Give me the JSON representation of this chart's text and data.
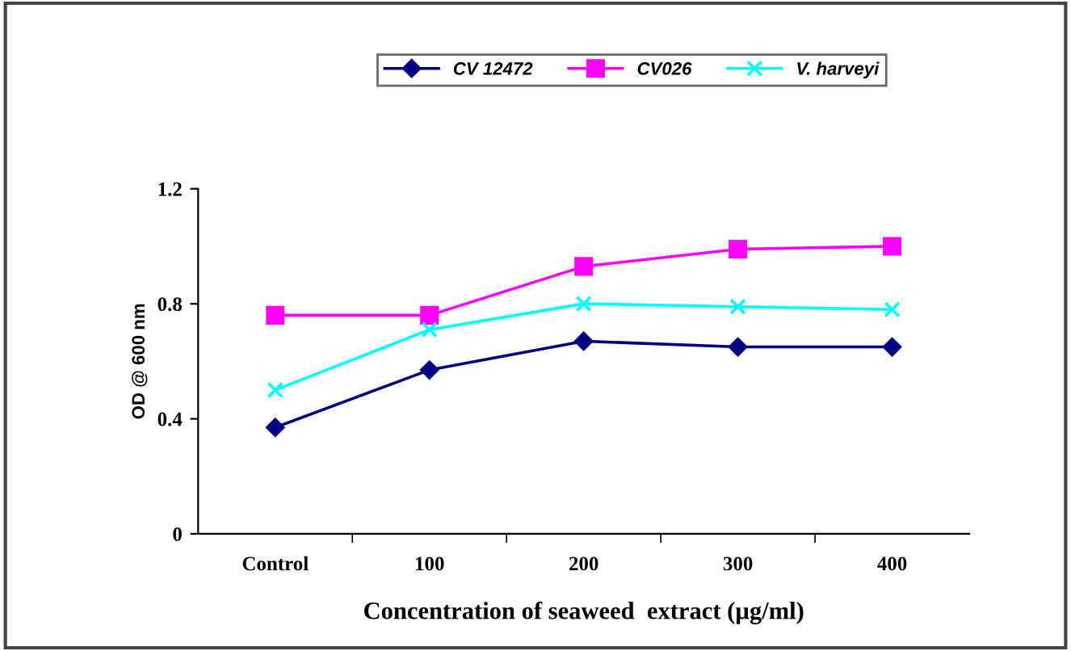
{
  "chart_data": {
    "type": "line",
    "xlabel": "Concentration of seaweed  extract (µg/ml)",
    "ylabel": "OD @ 600 nm",
    "categories": [
      "Control",
      "100",
      "200",
      "300",
      "400"
    ],
    "series": [
      {
        "name": "CV 12472",
        "color": "#000080",
        "marker": "diamond",
        "values": [
          0.37,
          0.57,
          0.67,
          0.65,
          0.65
        ]
      },
      {
        "name": "CV026",
        "color": "#ff00ff",
        "marker": "square",
        "values": [
          0.76,
          0.76,
          0.93,
          0.99,
          1.0
        ]
      },
      {
        "name": "V. harveyi",
        "color": "#00ffff",
        "marker": "cross",
        "values": [
          0.5,
          0.71,
          0.8,
          0.79,
          0.78
        ]
      }
    ],
    "ylim": [
      0,
      1.2
    ],
    "yticks": [
      0,
      0.4,
      0.8,
      1.2
    ],
    "grid": false,
    "legend": "top",
    "line_style": "solid"
  }
}
